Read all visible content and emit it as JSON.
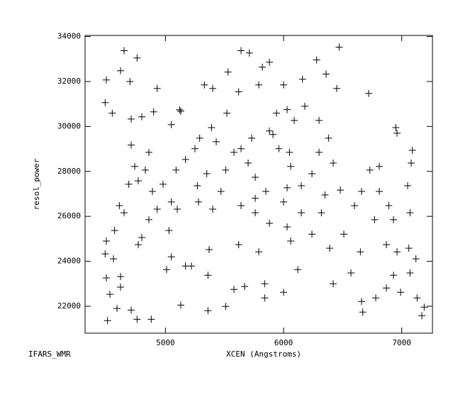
{
  "chart_data": {
    "type": "scatter",
    "x_label": "XCEN (Angstroms)",
    "y_label": "resol_power",
    "footer": "IFARS_WMR",
    "color": "#000000",
    "marker": "+",
    "xlim": [
      4320,
      7260
    ],
    "ylim": [
      20800,
      34050
    ],
    "xticks": [
      5000,
      6000,
      7000
    ],
    "yticks": [
      22000,
      24000,
      26000,
      28000,
      30000,
      32000,
      34000
    ],
    "x": [
      4490,
      4500,
      4550,
      4650,
      4760,
      4620,
      4700,
      4710,
      4800,
      4900,
      4930,
      5050,
      5130,
      5120,
      5330,
      5400,
      5530,
      5640,
      5710,
      5820,
      5880,
      6000,
      6160,
      6280,
      6360,
      6450,
      6470,
      6720,
      6950,
      6960,
      7090,
      7080,
      7050,
      7070,
      6930,
      6870,
      6960,
      7060,
      7120,
      6930,
      7070,
      6870,
      6990,
      7130,
      7190,
      7170,
      6660,
      6670,
      6780,
      4500,
      4490,
      4500,
      4530,
      4510,
      4590,
      4710,
      4620,
      4620,
      4560,
      4570,
      4650,
      4610,
      4690,
      4770,
      4830,
      4860,
      4710,
      4740,
      4890,
      4930,
      4860,
      4770,
      4800,
      5030,
      5100,
      5050,
      4980,
      5090,
      5170,
      5250,
      5290,
      5390,
      5430,
      5350,
      5270,
      5280,
      5400,
      5470,
      5510,
      5580,
      5640,
      5730,
      5700,
      5760,
      5850,
      5910,
      5880,
      5960,
      6050,
      6060,
      6030,
      6000,
      6030,
      6060,
      6150,
      6240,
      6300,
      6380,
      6420,
      6480,
      6350,
      6320,
      6240,
      6390,
      6510,
      6600,
      6660,
      6730,
      6810,
      6890,
      6810,
      6770,
      6650,
      6570,
      6420,
      6120,
      6000,
      5840,
      5840,
      5790,
      5620,
      5670,
      5580,
      5510,
      5360,
      5370,
      5360,
      5220,
      5170,
      5010,
      5050,
      4880,
      4760,
      5130,
      5520,
      5620,
      5790,
      5940,
      6030,
      6180,
      6300,
      6090,
      5640,
      5760,
      5880,
      6150,
      5760
    ],
    "values": [
      31060,
      32070,
      30590,
      33370,
      33050,
      32480,
      32000,
      30330,
      30430,
      30650,
      31690,
      30080,
      30680,
      30740,
      31850,
      31690,
      32420,
      33370,
      33270,
      32640,
      32860,
      31850,
      32100,
      32960,
      32330,
      31690,
      33530,
      31470,
      29950,
      29700,
      28940,
      28370,
      27360,
      26160,
      25850,
      24740,
      24420,
      24580,
      24110,
      23380,
      23480,
      22810,
      22620,
      22370,
      21960,
      21580,
      22210,
      21740,
      22370,
      24900,
      24330,
      23260,
      22530,
      21360,
      21900,
      21830,
      22850,
      23320,
      24110,
      25370,
      26160,
      26480,
      27430,
      27580,
      28060,
      28850,
      29170,
      28220,
      27110,
      26320,
      25850,
      24740,
      25060,
      25370,
      26320,
      26640,
      27430,
      28060,
      28530,
      29010,
      29480,
      29950,
      29320,
      27900,
      27360,
      26640,
      26320,
      27110,
      28060,
      28850,
      29010,
      29480,
      28370,
      27740,
      27110,
      29640,
      29800,
      29010,
      28850,
      28220,
      27270,
      26640,
      25530,
      24900,
      27360,
      27900,
      28850,
      29480,
      28370,
      27170,
      26950,
      26160,
      25210,
      24580,
      25210,
      26480,
      27110,
      28060,
      27110,
      26480,
      28220,
      25850,
      24420,
      23480,
      23000,
      23630,
      22620,
      23000,
      22370,
      24420,
      24740,
      22880,
      22750,
      21990,
      21800,
      24520,
      23380,
      23790,
      23790,
      23630,
      24200,
      21420,
      21420,
      22050,
      30590,
      31540,
      31850,
      30590,
      30750,
      30900,
      30270,
      30270,
      26480,
      26160,
      25690,
      26160,
      26800
    ]
  }
}
